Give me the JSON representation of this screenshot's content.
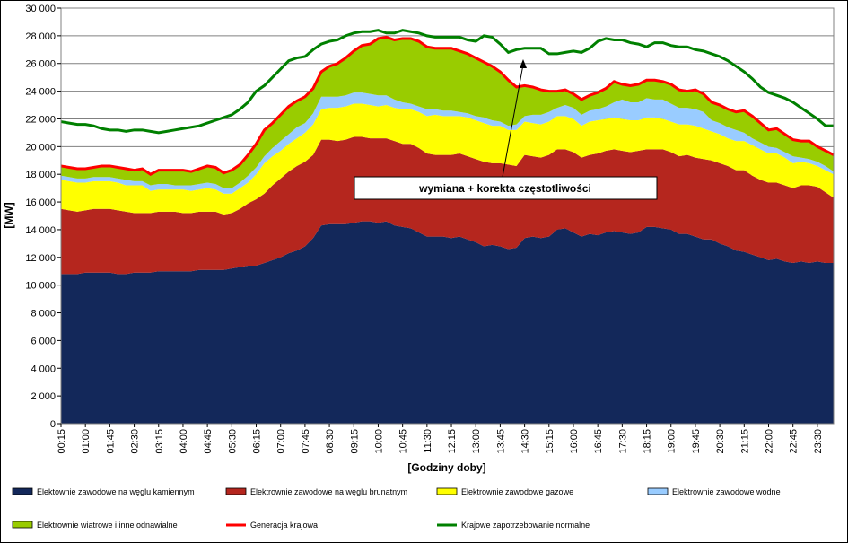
{
  "chart_data": {
    "type": "stacked_area",
    "y_label": "[MW]",
    "x_label": "[Godziny doby]",
    "annotation": "wymiana + korekta częstotliwości",
    "categories": [
      "00:15",
      null,
      null,
      "01:00",
      null,
      null,
      "01:45",
      null,
      null,
      "02:30",
      null,
      null,
      "03:15",
      null,
      null,
      "04:00",
      null,
      null,
      "04:45",
      null,
      null,
      "05:30",
      null,
      null,
      "06:15",
      null,
      null,
      "07:00",
      null,
      null,
      "07:45",
      null,
      null,
      "08:30",
      null,
      null,
      "09:15",
      null,
      null,
      "10:00",
      null,
      null,
      "10:45",
      null,
      null,
      "11:30",
      null,
      null,
      "12:15",
      null,
      null,
      "13:00",
      null,
      null,
      "13:45",
      null,
      null,
      "14:30",
      null,
      null,
      "15:15",
      null,
      null,
      "16:00",
      null,
      null,
      "16:45",
      null,
      null,
      "17:30",
      null,
      null,
      "18:15",
      null,
      null,
      "19:00",
      null,
      null,
      "19:45",
      null,
      null,
      "20:30",
      null,
      null,
      "21:15",
      null,
      null,
      "22:00",
      null,
      null,
      "22:45",
      null,
      null,
      "23:30",
      null,
      null
    ],
    "ylim": [
      0,
      30000
    ],
    "yticks": [
      0,
      {
        "value": 2000,
        "label": "2 000"
      },
      {
        "value": 4000,
        "label": "4 000"
      },
      {
        "value": 6000,
        "label": "6 000"
      },
      {
        "value": 8000,
        "label": "8 000"
      },
      {
        "value": 10000,
        "label": "10 000"
      },
      {
        "value": 12000,
        "label": "12 000"
      },
      {
        "value": 14000,
        "label": "14 000"
      },
      {
        "value": 16000,
        "label": "16 000"
      },
      {
        "value": 18000,
        "label": "18 000"
      },
      {
        "value": 20000,
        "label": "20 000"
      },
      {
        "value": 22000,
        "label": "22 000"
      },
      {
        "value": 24000,
        "label": "24 000"
      },
      {
        "value": 26000,
        "label": "26 000"
      },
      {
        "value": 28000,
        "label": "28 000"
      },
      {
        "value": 30000,
        "label": "30 000"
      }
    ],
    "grid": true,
    "legend": "bottom",
    "series": [
      {
        "name": "Elektownie zawodowe na węglu kamiennym",
        "color": "#13285a",
        "values": [
          10800,
          10800,
          10800,
          10900,
          10900,
          10900,
          10900,
          10800,
          10800,
          10900,
          10900,
          10900,
          11000,
          11000,
          11000,
          11000,
          11000,
          11100,
          11100,
          11100,
          11100,
          11200,
          11300,
          11400,
          11400,
          11600,
          11800,
          12000,
          12300,
          12500,
          12800,
          13400,
          14300,
          14400,
          14400,
          14400,
          14500,
          14600,
          14600,
          14500,
          14600,
          14300,
          14200,
          14100,
          13800,
          13500,
          13500,
          13500,
          13400,
          13500,
          13300,
          13100,
          12800,
          12900,
          12800,
          12600,
          12700,
          13400,
          13500,
          13400,
          13500,
          14000,
          14100,
          13800,
          13500,
          13700,
          13600,
          13800,
          13900,
          13800,
          13700,
          13800,
          14200,
          14200,
          14100,
          14000,
          13700,
          13700,
          13500,
          13300,
          13300,
          13000,
          12800,
          12500,
          12400,
          12200,
          12000,
          11800,
          11900,
          11700,
          11600,
          11700,
          11600,
          11700,
          11600,
          11600
        ]
      },
      {
        "name": "Elektrownie zawodowe na węglu brunatnym",
        "color": "#b5261e",
        "values": [
          4700,
          4600,
          4500,
          4500,
          4600,
          4600,
          4600,
          4600,
          4500,
          4300,
          4300,
          4300,
          4300,
          4300,
          4300,
          4200,
          4200,
          4200,
          4200,
          4200,
          4000,
          4000,
          4200,
          4500,
          4800,
          5000,
          5400,
          5700,
          5900,
          6100,
          6100,
          6000,
          6200,
          6100,
          6000,
          6100,
          6200,
          6100,
          6000,
          6100,
          6000,
          6100,
          6000,
          6100,
          6100,
          6000,
          5900,
          5900,
          6000,
          6000,
          6000,
          6000,
          6100,
          5900,
          6000,
          6100,
          5900,
          6000,
          5800,
          5800,
          5900,
          5800,
          5700,
          5800,
          5700,
          5700,
          5900,
          5900,
          5900,
          5900,
          5900,
          5900,
          5600,
          5600,
          5700,
          5600,
          5600,
          5700,
          5700,
          5800,
          5700,
          5800,
          5800,
          5800,
          5900,
          5700,
          5600,
          5600,
          5500,
          5500,
          5400,
          5500,
          5600,
          5400,
          5100,
          4700
        ]
      },
      {
        "name": "Elektrownie zawodowe gazowe",
        "color": "#ffff00",
        "values": [
          2100,
          2100,
          2100,
          2000,
          2000,
          2000,
          2000,
          2000,
          1900,
          2000,
          2000,
          1600,
          1600,
          1600,
          1600,
          1700,
          1600,
          1600,
          1700,
          1600,
          1500,
          1400,
          1500,
          1500,
          1800,
          2200,
          2100,
          2000,
          2000,
          2000,
          2100,
          2200,
          2200,
          2300,
          2400,
          2400,
          2400,
          2400,
          2400,
          2300,
          2400,
          2400,
          2500,
          2500,
          2600,
          2700,
          2900,
          2800,
          2800,
          2700,
          2800,
          2800,
          2800,
          2700,
          2700,
          2500,
          2600,
          2400,
          2400,
          2400,
          2400,
          2400,
          2400,
          2400,
          2300,
          2400,
          2400,
          2300,
          2300,
          2300,
          2300,
          2200,
          2300,
          2300,
          2200,
          2200,
          2300,
          2200,
          2300,
          2200,
          2100,
          2100,
          2000,
          2100,
          2100,
          2200,
          2200,
          2100,
          2100,
          2000,
          1800,
          1700,
          1600,
          1500,
          1600,
          1700
        ]
      },
      {
        "name": "Elektrownie zawodowe wodne",
        "color": "#99ccff",
        "values": [
          300,
          300,
          300,
          300,
          300,
          300,
          300,
          300,
          400,
          300,
          300,
          400,
          400,
          400,
          300,
          300,
          400,
          400,
          400,
          400,
          400,
          400,
          400,
          500,
          500,
          500,
          600,
          700,
          700,
          800,
          700,
          800,
          900,
          800,
          800,
          800,
          800,
          800,
          800,
          800,
          700,
          600,
          500,
          400,
          400,
          500,
          400,
          400,
          400,
          300,
          300,
          300,
          400,
          400,
          300,
          300,
          400,
          400,
          600,
          700,
          700,
          600,
          800,
          800,
          800,
          800,
          800,
          900,
          1100,
          1400,
          1300,
          1300,
          1400,
          1300,
          1400,
          1300,
          1200,
          1200,
          1200,
          1200,
          800,
          800,
          800,
          800,
          600,
          500,
          500,
          500,
          400,
          400,
          500,
          300,
          300,
          300,
          300,
          200
        ]
      },
      {
        "name": "Elektrownie wiatrowe i inne odnawialne",
        "color": "#99cc00",
        "values": [
          700,
          700,
          700,
          700,
          700,
          800,
          800,
          800,
          800,
          800,
          900,
          800,
          1000,
          1000,
          1100,
          1100,
          1000,
          1100,
          1200,
          1200,
          1100,
          1300,
          1300,
          1500,
          1700,
          1900,
          1800,
          1900,
          2000,
          1900,
          1900,
          1800,
          1800,
          2200,
          2400,
          2700,
          3000,
          3400,
          3600,
          4100,
          4200,
          4300,
          4600,
          4700,
          4700,
          4500,
          4400,
          4500,
          4500,
          4400,
          4300,
          4200,
          4000,
          3900,
          3600,
          3300,
          2700,
          2200,
          2000,
          1800,
          1500,
          1200,
          1100,
          1000,
          1100,
          1100,
          1200,
          1300,
          1500,
          1100,
          1200,
          1300,
          1300,
          1400,
          1300,
          1400,
          1300,
          1200,
          1400,
          1300,
          1300,
          1300,
          1300,
          1300,
          1600,
          1600,
          1400,
          1200,
          1400,
          1300,
          1200,
          1200,
          1300,
          1100,
          1100,
          1200
        ]
      }
    ],
    "line_series": [
      {
        "name": "Generacja krajowa",
        "color": "#ff0000",
        "values": [
          18600,
          18500,
          18400,
          18400,
          18500,
          18600,
          18600,
          18500,
          18400,
          18300,
          18400,
          18000,
          18300,
          18300,
          18300,
          18300,
          18200,
          18400,
          18600,
          18500,
          18100,
          18300,
          18700,
          19400,
          20200,
          21200,
          21700,
          22300,
          22900,
          23300,
          23600,
          24200,
          25400,
          25800,
          26000,
          26400,
          26900,
          27300,
          27400,
          27800,
          27900,
          27700,
          27800,
          27800,
          27600,
          27200,
          27100,
          27100,
          27100,
          26900,
          26700,
          26400,
          26100,
          25800,
          25400,
          24800,
          24300,
          24400,
          24300,
          24100,
          24000,
          24000,
          24100,
          23800,
          23400,
          23700,
          23900,
          24200,
          24700,
          24500,
          24400,
          24500,
          24800,
          24800,
          24700,
          24500,
          24100,
          24000,
          24100,
          23800,
          23200,
          23000,
          22700,
          22500,
          22600,
          22200,
          21700,
          21200,
          21300,
          20900,
          20500,
          20400,
          20400,
          20000,
          19700,
          19400
        ]
      },
      {
        "name": "Krajowe zapotrzebowanie normalne",
        "color": "#008000",
        "values": [
          21800,
          21700,
          21600,
          21600,
          21500,
          21300,
          21200,
          21200,
          21100,
          21200,
          21200,
          21100,
          21000,
          21100,
          21200,
          21300,
          21400,
          21500,
          21700,
          21900,
          22100,
          22300,
          22700,
          23200,
          24000,
          24400,
          25000,
          25600,
          26200,
          26400,
          26500,
          27000,
          27400,
          27600,
          27700,
          28000,
          28200,
          28300,
          28300,
          28400,
          28200,
          28200,
          28400,
          28300,
          28200,
          28000,
          27900,
          27900,
          27900,
          27900,
          27700,
          27600,
          28000,
          27900,
          27400,
          26800,
          27000,
          27100,
          27100,
          27100,
          26700,
          26700,
          26800,
          26900,
          26800,
          27100,
          27600,
          27800,
          27700,
          27700,
          27500,
          27400,
          27200,
          27500,
          27500,
          27300,
          27200,
          27200,
          27000,
          26900,
          26700,
          26500,
          26200,
          25800,
          25400,
          24900,
          24300,
          23900,
          23700,
          23500,
          23200,
          22800,
          22400,
          22000,
          21500,
          21500
        ]
      }
    ]
  }
}
